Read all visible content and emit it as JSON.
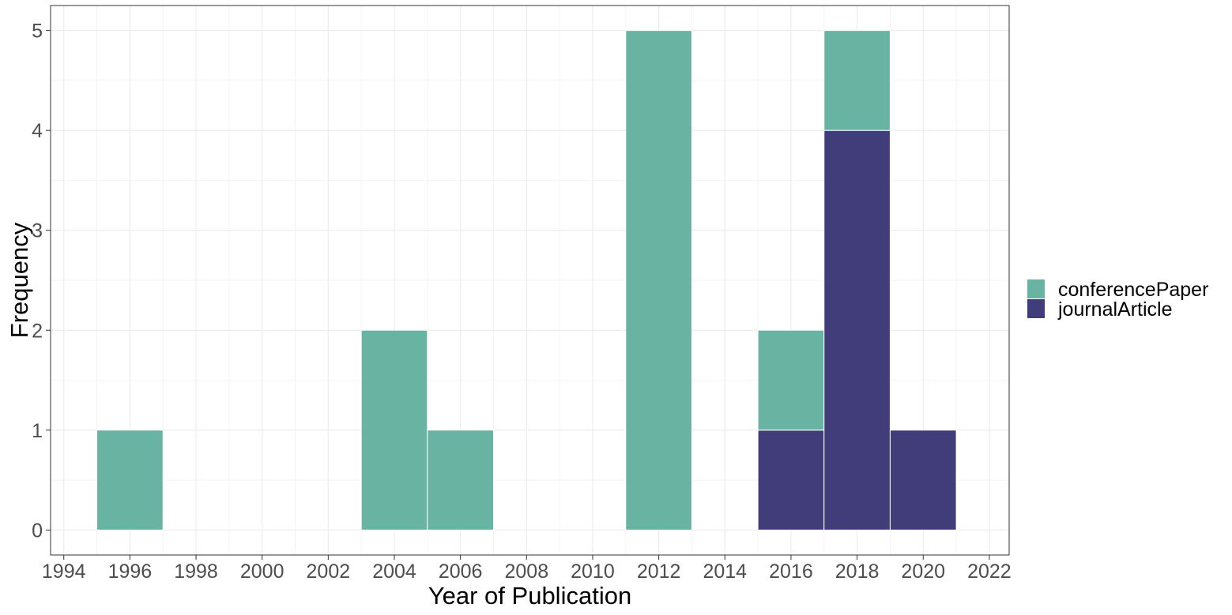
{
  "chart_data": {
    "type": "bar",
    "stacked": true,
    "xlabel": "Year of Publication",
    "ylabel": "Frequency",
    "xlim": [
      1993.6,
      2022.6
    ],
    "ylim": [
      -0.25,
      5.25
    ],
    "x_ticks": [
      1994,
      1996,
      1998,
      2000,
      2002,
      2004,
      2006,
      2008,
      2010,
      2012,
      2014,
      2016,
      2018,
      2020,
      2022
    ],
    "y_ticks": [
      0,
      1,
      2,
      3,
      4,
      5
    ],
    "grid": true,
    "bin_width": 2,
    "bins": [
      1996,
      2004,
      2006,
      2012,
      2016,
      2018,
      2020
    ],
    "series": [
      {
        "name": "journalArticle",
        "color": "#413d7b",
        "values": [
          0,
          0,
          0,
          0,
          1,
          4,
          1
        ]
      },
      {
        "name": "conferencePaper",
        "color": "#69b3a2",
        "values": [
          1,
          2,
          1,
          5,
          1,
          1,
          0
        ]
      }
    ],
    "legend": {
      "placement": "right",
      "entries": [
        {
          "label": "conferencePaper",
          "color": "#69b3a2"
        },
        {
          "label": "journalArticle",
          "color": "#413d7b"
        }
      ]
    }
  }
}
